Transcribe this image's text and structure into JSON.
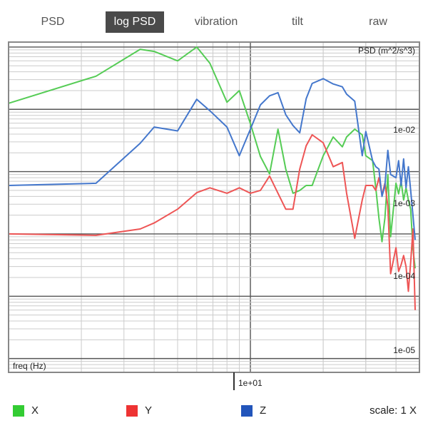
{
  "tabs": [
    {
      "label": "PSD",
      "active": false
    },
    {
      "label": "log PSD",
      "active": true
    },
    {
      "label": "vibration",
      "active": false
    },
    {
      "label": "tilt",
      "active": false
    },
    {
      "label": "raw",
      "active": false
    }
  ],
  "footer": {
    "legend": [
      {
        "label": "X",
        "color": "#33cc33"
      },
      {
        "label": "Y",
        "color": "#ee3333"
      },
      {
        "label": "Z",
        "color": "#2255bb"
      }
    ],
    "scale_label": "scale: 1 X"
  },
  "colors": {
    "X": "#55cc55",
    "Y": "#ee5555",
    "Z": "#4477cc"
  },
  "chart_data": {
    "type": "line",
    "ylabel": "PSD (m^2/s^3)",
    "xlabel": "freq (Hz)",
    "x_scale": "log",
    "y_scale": "log",
    "xlim": [
      1,
      50
    ],
    "ylim": [
      6e-07,
      0.12
    ],
    "x_tick_label": "1e+01",
    "y_tick_labels": [
      "1e-02",
      "1e-03",
      "1e-04",
      "1e-05"
    ],
    "grid": true,
    "x": [
      1,
      2.3,
      3.5,
      4,
      5,
      6,
      6.8,
      8,
      9,
      10,
      11,
      12,
      13,
      14,
      15,
      16,
      17,
      18,
      20,
      22,
      24,
      25,
      27,
      29,
      30,
      32,
      33,
      34,
      35,
      36,
      37,
      38,
      40,
      41,
      42,
      43,
      44,
      45,
      46,
      47,
      48
    ],
    "series": [
      {
        "name": "X",
        "color": "#55cc55",
        "values": [
          0.0125,
          0.034,
          0.092,
          0.085,
          0.06,
          0.1,
          0.055,
          0.013,
          0.02,
          0.0059,
          0.00175,
          0.00092,
          0.0048,
          0.0011,
          0.00045,
          0.0005,
          0.0006,
          0.0006,
          0.0018,
          0.0036,
          0.0025,
          0.0036,
          0.0048,
          0.0039,
          0.0018,
          0.0015,
          0.00055,
          0.00018,
          7.5e-05,
          0.00018,
          0.0009,
          9e-05,
          0.00065,
          0.00044,
          0.0007,
          0.00035,
          0.00055,
          0.00035,
          0.00025,
          5.8e-05,
          2.8e-05
        ]
      },
      {
        "name": "Y",
        "color": "#ee5555",
        "values": [
          0.0001,
          9.5e-05,
          0.00012,
          0.00015,
          0.00025,
          0.00046,
          0.00055,
          0.00045,
          0.00055,
          0.00045,
          0.0005,
          0.00085,
          0.00045,
          0.00025,
          0.00025,
          0.0011,
          0.0026,
          0.0039,
          0.0029,
          0.0012,
          0.0014,
          0.00045,
          8.5e-05,
          0.00035,
          0.0006,
          0.0006,
          0.0005,
          0.0008,
          0.00042,
          0.00065,
          0.00028,
          2.3e-05,
          6e-05,
          2.5e-05,
          3.2e-05,
          4.5e-05,
          3e-05,
          1.2e-05,
          3.5e-05,
          0.00012,
          6e-06
        ]
      },
      {
        "name": "Z",
        "color": "#4477cc",
        "values": [
          0.0006,
          0.00065,
          0.00285,
          0.0052,
          0.0045,
          0.0145,
          0.0095,
          0.0052,
          0.0018,
          0.0048,
          0.0118,
          0.0165,
          0.0185,
          0.0082,
          0.0055,
          0.0042,
          0.0148,
          0.026,
          0.031,
          0.0255,
          0.023,
          0.0175,
          0.0135,
          0.0018,
          0.0044,
          0.0015,
          0.0012,
          0.0011,
          0.0004,
          0.0006,
          0.0022,
          0.0009,
          0.0008,
          0.0015,
          0.0006,
          0.0016,
          0.00055,
          0.0012,
          0.0005,
          0.0002,
          8e-05
        ]
      }
    ]
  }
}
